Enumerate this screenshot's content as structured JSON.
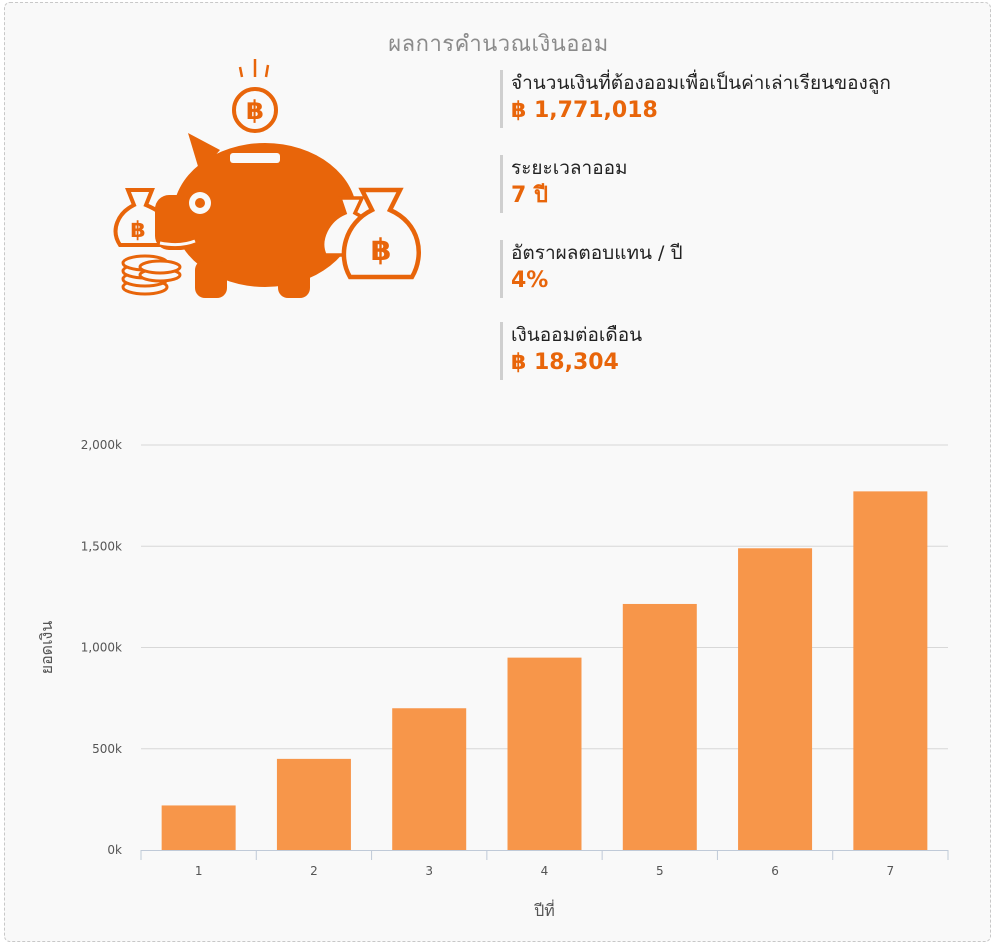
{
  "title": "ผลการคำนวณเงินออม",
  "stats": [
    {
      "label": "จำนวนเงินที่ต้องออมเพื่อเป็นค่าเล่าเรียนของลูก",
      "value": "฿ 1,771,018"
    },
    {
      "label": "ระยะเวลาออม",
      "value": "7 ปี"
    },
    {
      "label": "อัตราผลตอบแทน / ปี",
      "value": "4%"
    },
    {
      "label": "เงินออมต่อเดือน",
      "value": "฿ 18,304"
    }
  ],
  "illustration": {
    "icon": "piggy-bank-money-bags-icon",
    "currency_symbol": "฿",
    "color": "#e8650a"
  },
  "colors": {
    "bar": "#f7964a",
    "accent": "#e8650a",
    "grid": "#d8d8d8"
  },
  "chart_data": {
    "type": "bar",
    "categories": [
      "1",
      "2",
      "3",
      "4",
      "5",
      "6",
      "7"
    ],
    "values": [
      220000,
      450000,
      700000,
      950000,
      1215000,
      1490000,
      1771018
    ],
    "title": "",
    "xlabel": "ปีที่",
    "ylabel": "ยอดเงิน",
    "ylim": [
      0,
      2000000
    ],
    "yticks": [
      "0k",
      "500k",
      "1,000k",
      "1,500k",
      "2,000k"
    ],
    "grid": true,
    "legend": "none"
  }
}
